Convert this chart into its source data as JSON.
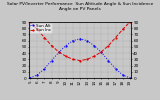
{
  "title": "Solar PV/Inverter Performance  Sun Altitude Angle & Sun Incidence Angle on PV Panels",
  "bg_color": "#c8c8c8",
  "plot_bg_color": "#c8c8c8",
  "grid_color": "#aaaaaa",
  "blue_color": "#0000ff",
  "red_color": "#dd0000",
  "x_values": [
    5,
    6,
    7,
    8,
    9,
    10,
    11,
    12,
    13,
    14,
    15,
    16,
    17,
    18,
    19
  ],
  "x_labels": [
    "5",
    "6",
    "7",
    "8",
    "9",
    "10",
    "11",
    "12",
    "13",
    "14",
    "15",
    "16",
    "17",
    "18",
    "19"
  ],
  "altitude_values": [
    0,
    5,
    15,
    28,
    41,
    52,
    60,
    63,
    60,
    52,
    41,
    28,
    15,
    5,
    0
  ],
  "incidence_values": [
    90,
    78,
    65,
    52,
    42,
    35,
    30,
    28,
    30,
    35,
    42,
    52,
    65,
    78,
    90
  ],
  "ylim": [
    0,
    90
  ],
  "yticks": [
    0,
    10,
    20,
    30,
    40,
    50,
    60,
    70,
    80,
    90
  ],
  "ytick_labels": [
    "0",
    "10",
    "20",
    "30",
    "40",
    "50",
    "60",
    "70",
    "80",
    "90"
  ],
  "title_fontsize": 3.2,
  "tick_fontsize": 3.0,
  "legend_fontsize": 3.0,
  "line_width": 0.7,
  "legend_labels": [
    "Sun Alt",
    "Sun Inc"
  ],
  "figsize": [
    1.6,
    1.0
  ],
  "dpi": 100
}
